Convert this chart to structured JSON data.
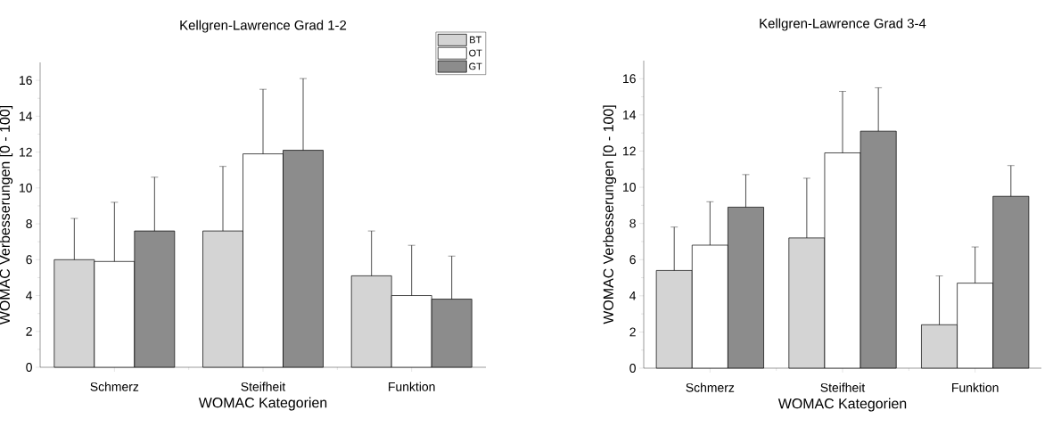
{
  "chart_data": [
    {
      "type": "bar",
      "title": "Kellgren-Lawrence Grad 1-2",
      "xlabel": "WOMAC Kategorien",
      "ylabel": "WOMAC Verbesserungen [0 - 100]",
      "categories": [
        "Schmerz",
        "Steifheit",
        "Funktion"
      ],
      "ylim": [
        0,
        17
      ],
      "yticks": [
        0,
        2,
        4,
        6,
        8,
        10,
        12,
        14,
        16
      ],
      "legend": "top right",
      "series": [
        {
          "name": "BT",
          "color": "#d4d4d4",
          "values": [
            6.0,
            7.6,
            5.1
          ],
          "errors": [
            2.3,
            3.6,
            2.5
          ]
        },
        {
          "name": "OT",
          "color": "#ffffff",
          "values": [
            5.9,
            11.9,
            4.0
          ],
          "errors": [
            3.3,
            3.6,
            2.8
          ]
        },
        {
          "name": "GT",
          "color": "#8c8c8c",
          "values": [
            7.6,
            12.1,
            3.8
          ],
          "errors": [
            3.0,
            4.0,
            2.4
          ]
        }
      ]
    },
    {
      "type": "bar",
      "title": "Kellgren-Lawrence Grad 3-4",
      "xlabel": "WOMAC Kategorien",
      "ylabel": "WOMAC Verbesserungen [0 - 100]",
      "categories": [
        "Schmerz",
        "Steifheit",
        "Funktion"
      ],
      "ylim": [
        0,
        17
      ],
      "yticks": [
        0,
        2,
        4,
        6,
        8,
        10,
        12,
        14,
        16
      ],
      "series": [
        {
          "color": "#d4d4d4",
          "values": [
            5.4,
            7.2,
            2.4
          ],
          "errors": [
            2.4,
            3.3,
            2.7
          ]
        },
        {
          "color": "#ffffff",
          "values": [
            6.8,
            11.9,
            4.7
          ],
          "errors": [
            2.4,
            3.4,
            2.0
          ]
        },
        {
          "color": "#8c8c8c",
          "values": [
            8.9,
            13.1,
            9.5
          ],
          "errors": [
            1.8,
            2.4,
            1.7
          ]
        }
      ]
    }
  ]
}
